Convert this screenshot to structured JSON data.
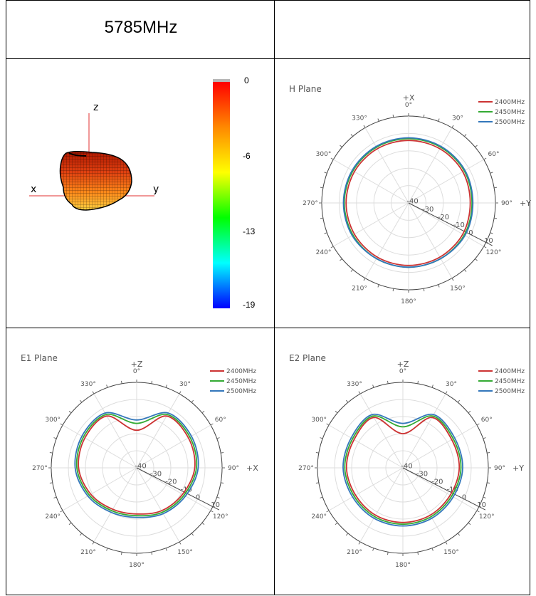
{
  "header": {
    "frequency": "5785MHz"
  },
  "pattern3d": {
    "axes": {
      "x": "x",
      "y": "y",
      "z": "z"
    },
    "colorbar_ticks": [
      "0",
      "-6",
      "-13",
      "-19"
    ],
    "colorbar_colors": [
      "#ff0000",
      "#ff8800",
      "#ffff00",
      "#00ff00",
      "#00ffff",
      "#0000ff"
    ]
  },
  "legend": [
    "2400MHz",
    "2450MHz",
    "2500MHz"
  ],
  "series_colors": [
    "#cc3333",
    "#33aa33",
    "#3377bb"
  ],
  "chart_data": [
    {
      "type": "polar",
      "title": "H Plane",
      "axis_top": "+X",
      "axis_right": "+Y",
      "angle_labels": [
        "0°",
        "30°",
        "60°",
        "90°",
        "120°",
        "150°",
        "180°",
        "210°",
        "240°",
        "270°",
        "300°",
        "330°"
      ],
      "radial_labels": [
        "-40",
        "-30",
        "-20",
        "-10",
        "0",
        "10"
      ],
      "rlim": [
        -40,
        10
      ],
      "theta_deg": [
        0,
        30,
        60,
        90,
        120,
        150,
        180,
        210,
        240,
        270,
        300,
        330,
        360
      ],
      "series": [
        {
          "name": "2400MHz",
          "values": [
            -4,
            -4,
            -4,
            -4.5,
            -4,
            -4,
            -4,
            -4,
            -4,
            -4,
            -4,
            -4,
            -4
          ]
        },
        {
          "name": "2450MHz",
          "values": [
            -3,
            -3,
            -3,
            -3.5,
            -3,
            -3,
            -3,
            -3,
            -3,
            -3,
            -3,
            -3,
            -3
          ]
        },
        {
          "name": "2500MHz",
          "values": [
            -2.5,
            -2.5,
            -2.5,
            -3,
            -2.5,
            -3,
            -3,
            -3,
            -2.5,
            -2.5,
            -2.5,
            -2.5,
            -2.5
          ]
        }
      ]
    },
    {
      "type": "polar",
      "title": "E1 Plane",
      "axis_top": "+Z",
      "axis_right": "+X",
      "angle_labels": [
        "0°",
        "30°",
        "60°",
        "90°",
        "120°",
        "150°",
        "180°",
        "210°",
        "240°",
        "270°",
        "300°",
        "330°"
      ],
      "radial_labels": [
        "-40",
        "-30",
        "-20",
        "-10",
        "0",
        "10"
      ],
      "rlim": [
        -40,
        10
      ],
      "theta_deg": [
        0,
        30,
        60,
        90,
        120,
        150,
        180,
        210,
        240,
        270,
        300,
        330,
        360
      ],
      "series": [
        {
          "name": "2400MHz",
          "values": [
            -18,
            -5,
            -5,
            -6,
            -9,
            -11,
            -13,
            -12,
            -9,
            -6,
            -5,
            -5,
            -18
          ]
        },
        {
          "name": "2450MHz",
          "values": [
            -14,
            -4,
            -4,
            -5,
            -8,
            -10,
            -12,
            -11,
            -8,
            -5,
            -4,
            -4,
            -14
          ]
        },
        {
          "name": "2500MHz",
          "values": [
            -12,
            -3,
            -3,
            -4,
            -7,
            -9,
            -11,
            -10,
            -7,
            -4,
            -3,
            -3,
            -12
          ]
        }
      ]
    },
    {
      "type": "polar",
      "title": "E2 Plane",
      "axis_top": "+Z",
      "axis_right": "+Y",
      "angle_labels": [
        "0°",
        "30°",
        "60°",
        "90°",
        "120°",
        "150°",
        "180°",
        "210°",
        "240°",
        "270°",
        "300°",
        "330°"
      ],
      "radial_labels": [
        "-40",
        "-30",
        "-20",
        "-10",
        "0",
        "10"
      ],
      "rlim": [
        -40,
        10
      ],
      "theta_deg": [
        0,
        30,
        60,
        90,
        120,
        150,
        180,
        210,
        240,
        270,
        300,
        330,
        360
      ],
      "series": [
        {
          "name": "2400MHz",
          "values": [
            -20,
            -6,
            -7,
            -7,
            -8,
            -8,
            -8,
            -8,
            -8,
            -7,
            -7,
            -6,
            -20
          ]
        },
        {
          "name": "2450MHz",
          "values": [
            -16,
            -5,
            -6,
            -6,
            -7,
            -7,
            -7,
            -7,
            -7,
            -6,
            -6,
            -5,
            -16
          ]
        },
        {
          "name": "2500MHz",
          "values": [
            -14,
            -4,
            -5,
            -5,
            -6,
            -6,
            -6,
            -6,
            -6,
            -5,
            -5,
            -4,
            -14
          ]
        }
      ]
    }
  ]
}
